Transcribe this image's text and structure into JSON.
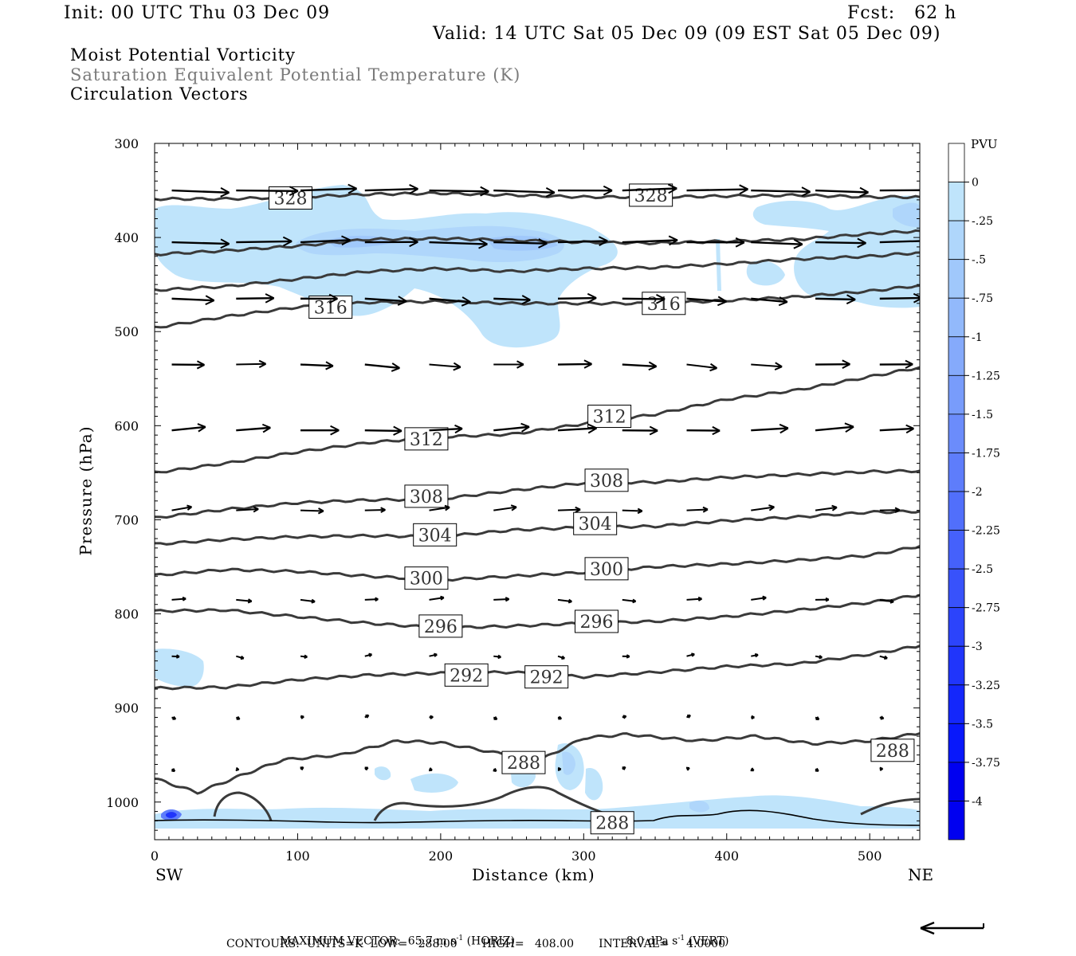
{
  "header": {
    "init": "Init: 00 UTC Thu 03 Dec 09",
    "fcst": "Fcst:   62 h",
    "valid": "Valid: 14 UTC Sat 05 Dec 09 (09 EST Sat 05 Dec 09)"
  },
  "fields": {
    "field1": "Moist Potential Vorticity",
    "field2": "Saturation Equivalent Potential Temperature (K)",
    "field3": "Circulation Vectors"
  },
  "chart_data": {
    "type": "cross-section",
    "xlabel": "Distance (km)",
    "ylabel": "Pressure (hPa)",
    "xlim": [
      0,
      535
    ],
    "ylim": [
      1040,
      300
    ],
    "x_ticks": [
      "0",
      "100",
      "200",
      "300",
      "400",
      "500"
    ],
    "y_ticks": [
      "300",
      "400",
      "500",
      "600",
      "700",
      "800",
      "900",
      "1000"
    ],
    "left_end": "SW",
    "right_end": "NE",
    "colorbar": {
      "unit": "PVU",
      "labels": [
        "0",
        "-.25",
        "-.5",
        "-.75",
        "-1",
        "-1.25",
        "-1.5",
        "-1.75",
        "-2",
        "-2.25",
        "-2.5",
        "-2.75",
        "-3",
        "-3.25",
        "-3.5",
        "-3.75",
        "-4"
      ],
      "colors": [
        "#ffffff",
        "#bfe4fb",
        "#afd6fb",
        "#a0c8fb",
        "#92b9fb",
        "#85aafb",
        "#789cfb",
        "#6b8cfb",
        "#5e7dfb",
        "#516ffb",
        "#4561fb",
        "#3852fb",
        "#2c44fb",
        "#2035fb",
        "#1427fb",
        "#0818fb",
        "#0000f0"
      ]
    },
    "contour_labels": [
      {
        "text": "328",
        "x": 95,
        "p": 358
      },
      {
        "text": "328",
        "x": 347,
        "p": 355
      },
      {
        "text": "316",
        "x": 123,
        "p": 474
      },
      {
        "text": "316",
        "x": 356,
        "p": 470
      },
      {
        "text": "312",
        "x": 190,
        "p": 614
      },
      {
        "text": "312",
        "x": 318,
        "p": 590
      },
      {
        "text": "308",
        "x": 190,
        "p": 675
      },
      {
        "text": "308",
        "x": 316,
        "p": 658
      },
      {
        "text": "304",
        "x": 196,
        "p": 716
      },
      {
        "text": "304",
        "x": 308,
        "p": 704
      },
      {
        "text": "300",
        "x": 190,
        "p": 762
      },
      {
        "text": "300",
        "x": 316,
        "p": 752
      },
      {
        "text": "296",
        "x": 200,
        "p": 813
      },
      {
        "text": "296",
        "x": 309,
        "p": 808
      },
      {
        "text": "292",
        "x": 218,
        "p": 865
      },
      {
        "text": "292",
        "x": 274,
        "p": 867
      },
      {
        "text": "288",
        "x": 258,
        "p": 958
      },
      {
        "text": "288",
        "x": 516,
        "p": 945
      },
      {
        "text": "288",
        "x": 320,
        "p": 1022
      }
    ],
    "isentropes": [
      {
        "value": 328,
        "x": [
          0,
          50,
          100,
          150,
          200,
          250,
          300,
          350,
          400,
          450,
          500,
          535
        ],
        "p": [
          359,
          359,
          357,
          354,
          353,
          355,
          357,
          357,
          356,
          355,
          357,
          357
        ]
      },
      {
        "value": 324,
        "x": [
          0,
          50,
          100,
          150,
          200,
          250,
          300,
          350,
          400,
          450,
          500,
          535
        ],
        "p": [
          418,
          414,
          409,
          402,
          401,
          403,
          405,
          406,
          404,
          402,
          396,
          393
        ]
      },
      {
        "value": 320,
        "x": [
          0,
          50,
          100,
          150,
          200,
          250,
          300,
          350,
          400,
          450,
          500,
          535
        ],
        "p": [
          456,
          452,
          444,
          436,
          433,
          436,
          433,
          432,
          428,
          423,
          420,
          416
        ]
      },
      {
        "value": 316,
        "x": [
          0,
          50,
          100,
          150,
          200,
          250,
          300,
          350,
          400,
          450,
          500,
          535
        ],
        "p": [
          496,
          484,
          474,
          469,
          468,
          470,
          470,
          470,
          467,
          463,
          457,
          451
        ]
      },
      {
        "value": 312,
        "x": [
          0,
          50,
          100,
          150,
          200,
          250,
          300,
          350,
          400,
          450,
          500,
          535
        ],
        "p": [
          650,
          640,
          628,
          618,
          612,
          609,
          598,
          588,
          572,
          562,
          548,
          538
        ]
      },
      {
        "value": 308,
        "x": [
          0,
          50,
          100,
          150,
          200,
          250,
          300,
          350,
          400,
          450,
          500,
          535
        ],
        "p": [
          698,
          689,
          682,
          679,
          678,
          669,
          661,
          660,
          655,
          652,
          649,
          648
        ]
      },
      {
        "value": 304,
        "x": [
          0,
          50,
          100,
          150,
          200,
          250,
          300,
          350,
          400,
          450,
          500,
          535
        ],
        "p": [
          726,
          721,
          718,
          717,
          718,
          711,
          708,
          707,
          701,
          697,
          692,
          691
        ]
      },
      {
        "value": 300,
        "x": [
          0,
          50,
          100,
          150,
          200,
          250,
          300,
          350,
          400,
          450,
          500,
          535
        ],
        "p": [
          759,
          753,
          755,
          760,
          764,
          760,
          756,
          750,
          747,
          743,
          738,
          728
        ]
      },
      {
        "value": 296,
        "x": [
          0,
          50,
          100,
          150,
          200,
          250,
          300,
          350,
          400,
          450,
          500,
          535
        ],
        "p": [
          797,
          796,
          803,
          810,
          815,
          813,
          810,
          808,
          803,
          796,
          788,
          780
        ]
      },
      {
        "value": 292,
        "x": [
          0,
          50,
          100,
          150,
          200,
          250,
          300,
          350,
          400,
          450,
          500,
          535
        ],
        "p": [
          879,
          878,
          870,
          865,
          863,
          862,
          867,
          862,
          856,
          853,
          843,
          834
        ]
      },
      {
        "value": 288,
        "x": [
          0,
          30,
          60,
          90,
          130,
          170,
          200,
          240,
          270,
          300,
          330,
          380,
          420,
          460,
          500,
          535
        ],
        "p": [
          975,
          990,
          972,
          955,
          950,
          935,
          937,
          948,
          955,
          932,
          928,
          935,
          930,
          938,
          935,
          927
        ]
      }
    ],
    "vector_levels": [
      {
        "p": 350,
        "u": 0.8,
        "w": 0.0
      },
      {
        "p": 405,
        "u": 0.75,
        "w": 0.0
      },
      {
        "p": 465,
        "u": 0.55,
        "w": 0.02
      },
      {
        "p": 535,
        "u": 0.45,
        "w": 0.02
      },
      {
        "p": 605,
        "u": 0.5,
        "w": -0.02
      },
      {
        "p": 690,
        "u": 0.3,
        "w": -0.02
      },
      {
        "p": 785,
        "u": 0.2,
        "w": 0.0
      },
      {
        "p": 845,
        "u": 0.1,
        "w": 0.0
      },
      {
        "p": 910,
        "u": 0.05,
        "w": 0.0
      },
      {
        "p": 965,
        "u": 0.04,
        "w": 0.0
      }
    ],
    "vector_x": [
      12,
      57,
      102,
      147,
      192,
      237,
      282,
      327,
      372,
      417,
      462,
      507
    ]
  },
  "footer": {
    "max_vector_label": "MAXIMUM VECTOR:",
    "max_vector_horiz": "65.7 m s",
    "horiz_suffix": "(HORIZ)",
    "max_vector_vert": "8.0 dPa s",
    "vert_suffix": "(VERT)",
    "exponent": "-1",
    "contours": "CONTOURS:  UNITS=K  LOW=   288.00       HIGH=   408.00       INTERVAL=     4.0000"
  }
}
